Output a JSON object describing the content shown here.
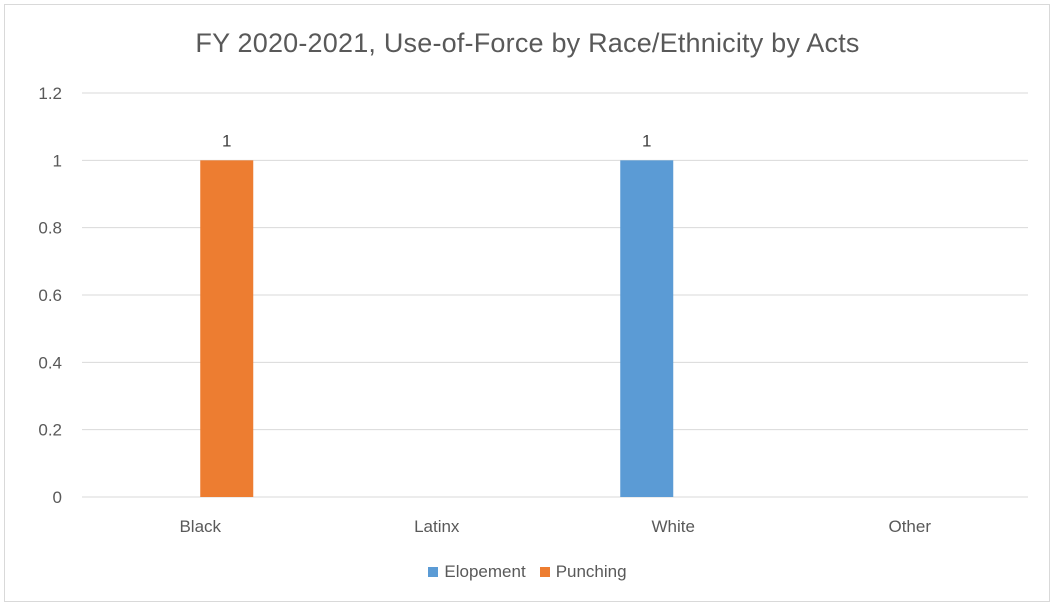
{
  "chart_data": {
    "type": "bar",
    "title": "FY 2020-2021, Use-of-Force by Race/Ethnicity by Acts",
    "xlabel": "",
    "ylabel": "",
    "categories": [
      "Black",
      "Latinx",
      "White",
      "Other"
    ],
    "ylim": [
      0,
      1.2
    ],
    "yticks": [
      "0",
      "0.2",
      "0.4",
      "0.6",
      "0.8",
      "1",
      "1.2"
    ],
    "grid": true,
    "legend_position": "bottom",
    "series": [
      {
        "name": "Elopement",
        "color": "#5b9bd5",
        "values": [
          0,
          0,
          1,
          0
        ],
        "labels": [
          "",
          "",
          "1",
          ""
        ]
      },
      {
        "name": "Punching",
        "color": "#ed7d31",
        "values": [
          1,
          0,
          0,
          0
        ],
        "labels": [
          "1",
          "",
          "",
          ""
        ]
      }
    ]
  }
}
